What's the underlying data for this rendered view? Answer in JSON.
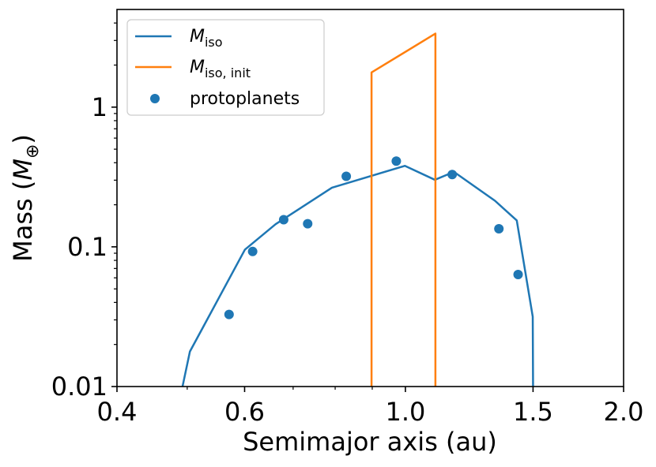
{
  "chart_data": {
    "type": "line",
    "title": "",
    "xlabel": "Semimajor axis (au)",
    "ylabel_prefix": "Mass (",
    "ylabel_symbol": "M",
    "ylabel_sub": "⊕",
    "ylabel_suffix": ")",
    "x_scale": "log",
    "y_scale": "log",
    "xlim": [
      0.4,
      2.0
    ],
    "ylim": [
      0.01,
      5.0
    ],
    "grid": false,
    "legend_placement": "top-left",
    "x_ticks": [
      {
        "value": 0.4,
        "label": "0.4"
      },
      {
        "value": 0.6,
        "label": "0.6"
      },
      {
        "value": 1.0,
        "label": "1.0"
      },
      {
        "value": 1.5,
        "label": "1.5"
      },
      {
        "value": 2.0,
        "label": "2.0"
      }
    ],
    "x_minor_ticks": [
      0.5,
      0.7,
      0.8,
      0.9
    ],
    "y_ticks": [
      {
        "value": 0.01,
        "label": "0.01"
      },
      {
        "value": 0.1,
        "label": "0.1"
      },
      {
        "value": 1,
        "label": "1"
      }
    ],
    "y_minor_ticks": [
      0.02,
      0.03,
      0.04,
      0.05,
      0.06,
      0.07,
      0.08,
      0.09,
      0.2,
      0.3,
      0.4,
      0.5,
      0.6,
      0.7,
      0.8,
      0.9,
      2,
      3,
      4
    ],
    "series": [
      {
        "name": "M_iso",
        "label_main": "M",
        "label_sub": "iso",
        "kind": "line",
        "color": "#1f77b4",
        "x": [
          0.4926,
          0.5043,
          0.6006,
          0.6621,
          0.7918,
          0.9985,
          1.0982,
          1.1667,
          1.3286,
          1.4244,
          1.4986,
          1.5001
        ],
        "y": [
          0.01,
          0.0178,
          0.0955,
          0.1452,
          0.2649,
          0.3799,
          0.3018,
          0.3441,
          0.214,
          0.1545,
          0.0316,
          0.01
        ]
      },
      {
        "name": "M_iso,init",
        "label_main": "M",
        "label_sub": "iso, init",
        "kind": "line",
        "color": "#ff7f0e",
        "x": [
          0.898,
          0.898,
          1.1,
          1.1
        ],
        "y": [
          0.01,
          1.77,
          3.36,
          0.01
        ]
      },
      {
        "name": "protoplanets",
        "label_main": "protoplanets",
        "label_sub": "",
        "kind": "scatter",
        "color": "#1f77b4",
        "x": [
          0.5711,
          0.6155,
          0.6793,
          0.7331,
          0.8287,
          0.9715,
          1.1603,
          1.3458,
          1.4305
        ],
        "y": [
          0.0328,
          0.0926,
          0.1563,
          0.1462,
          0.3199,
          0.4104,
          0.3292,
          0.1347,
          0.0634
        ]
      }
    ]
  }
}
